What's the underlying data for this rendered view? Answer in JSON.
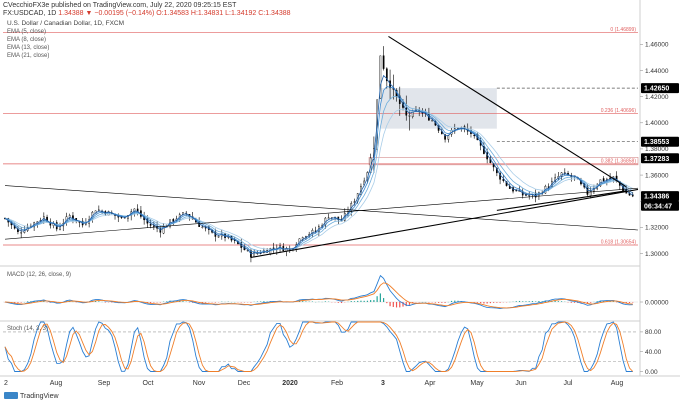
{
  "header": {
    "published_by": "CVecchioFX3e published on TradingView.com, July 22, 2020 09:25:15 EST",
    "symbol": "FX:USDCAD, 1D",
    "ohlc_values": "1.34388 ▼ −0.00195 (−0.14%) O:1.34583 H:1.34831 L:1.34192 C:1.34388",
    "title": "U.S. Dollar / Canadian Dollar, 1D, FXCM",
    "indicators": [
      "EMA (5, close)",
      "EMA (8, close)",
      "EMA (13, close)",
      "EMA (21, close)"
    ]
  },
  "colors": {
    "candle": "#000000",
    "ema5": "#1f5fa8",
    "ema8": "#3d8ad0",
    "ema13": "#6faedc",
    "ema21": "#a9cde8",
    "fib_line": "#e06060",
    "trendline": "#000000",
    "macd_line": "#2a7fd4",
    "signal_line": "#f07f2a",
    "hist_up": "#26a69a",
    "hist_down": "#ef5350",
    "shade": "#d9dee6",
    "price_tag": "#000000"
  },
  "chart_data": [
    {
      "type": "candlestick",
      "title": "U.S. Dollar / Canadian Dollar, 1D, FXCM",
      "x_ticks": [
        "2",
        "Aug",
        "Sep",
        "Oct",
        "Nov",
        "Dec",
        "2020",
        "Feb",
        "3",
        "Apr",
        "May",
        "Jun",
        "Jul",
        "Aug"
      ],
      "y_ticks": [
        "1.46000",
        "1.44000",
        "1.42000",
        "1.40000",
        "1.38000",
        "1.36000",
        "1.34000",
        "1.32000",
        "1.30000"
      ],
      "ylim": [
        1.292,
        1.474
      ],
      "close_path": [
        [
          0,
          1.327
        ],
        [
          8,
          1.316
        ],
        [
          16,
          1.322
        ],
        [
          24,
          1.328
        ],
        [
          32,
          1.319
        ],
        [
          40,
          1.329
        ],
        [
          48,
          1.322
        ],
        [
          56,
          1.334
        ],
        [
          64,
          1.331
        ],
        [
          72,
          1.327
        ],
        [
          80,
          1.334
        ],
        [
          88,
          1.323
        ],
        [
          96,
          1.318
        ],
        [
          104,
          1.326
        ],
        [
          112,
          1.331
        ],
        [
          120,
          1.322
        ],
        [
          128,
          1.315
        ],
        [
          136,
          1.313
        ],
        [
          144,
          1.307
        ],
        [
          152,
          1.299
        ],
        [
          160,
          1.302
        ],
        [
          168,
          1.305
        ],
        [
          176,
          1.303
        ],
        [
          184,
          1.314
        ],
        [
          192,
          1.317
        ],
        [
          200,
          1.329
        ],
        [
          208,
          1.325
        ],
        [
          216,
          1.341
        ],
        [
          224,
          1.363
        ],
        [
          228,
          1.382
        ],
        [
          232,
          1.452
        ],
        [
          236,
          1.433
        ],
        [
          240,
          1.424
        ],
        [
          248,
          1.405
        ],
        [
          256,
          1.409
        ],
        [
          264,
          1.402
        ],
        [
          272,
          1.389
        ],
        [
          280,
          1.397
        ],
        [
          288,
          1.392
        ],
        [
          296,
          1.378
        ],
        [
          304,
          1.361
        ],
        [
          312,
          1.35
        ],
        [
          320,
          1.345
        ],
        [
          328,
          1.344
        ],
        [
          336,
          1.352
        ],
        [
          344,
          1.361
        ],
        [
          352,
          1.358
        ],
        [
          360,
          1.346
        ],
        [
          368,
          1.356
        ],
        [
          376,
          1.358
        ],
        [
          384,
          1.346
        ],
        [
          388,
          1.344
        ]
      ],
      "fibonacci_levels": [
        {
          "label": "0 (1.46899)",
          "price": 1.46899
        },
        {
          "label": "0.236 (1.40696)",
          "price": 1.40696
        },
        {
          "label": "0.382 (1.36858)",
          "price": 1.36858
        },
        {
          "label": "0.618 (1.30654)",
          "price": 1.30654
        }
      ],
      "price_tags": [
        {
          "label": "1.42650",
          "price": 1.4265
        },
        {
          "label": "1.38553",
          "price": 1.38553
        },
        {
          "label": "1.37283",
          "price": 1.37283
        },
        {
          "label": "1.34386",
          "price": 1.34386
        },
        {
          "label": "06:34:47",
          "price": 1.3365
        }
      ],
      "shaded_range": {
        "price_high": 1.4265,
        "price_low": 1.3955
      },
      "dashed_levels": [
        1.4265,
        1.38553
      ]
    },
    {
      "type": "line",
      "title": "MACD (12, 26, close, 9)",
      "y_ticks": [
        "0.00000"
      ],
      "series": [
        {
          "name": "MACD",
          "color": "#2a7fd4"
        },
        {
          "name": "Signal",
          "color": "#f07f2a"
        }
      ]
    },
    {
      "type": "line",
      "title": "Stoch (14, 3, 3)",
      "y_ticks": [
        "80.00",
        "40.00",
        "0.00"
      ],
      "ylim": [
        -5,
        100
      ],
      "bands": [
        80,
        20
      ]
    }
  ],
  "footer": {
    "logo_text": "TradingView"
  }
}
